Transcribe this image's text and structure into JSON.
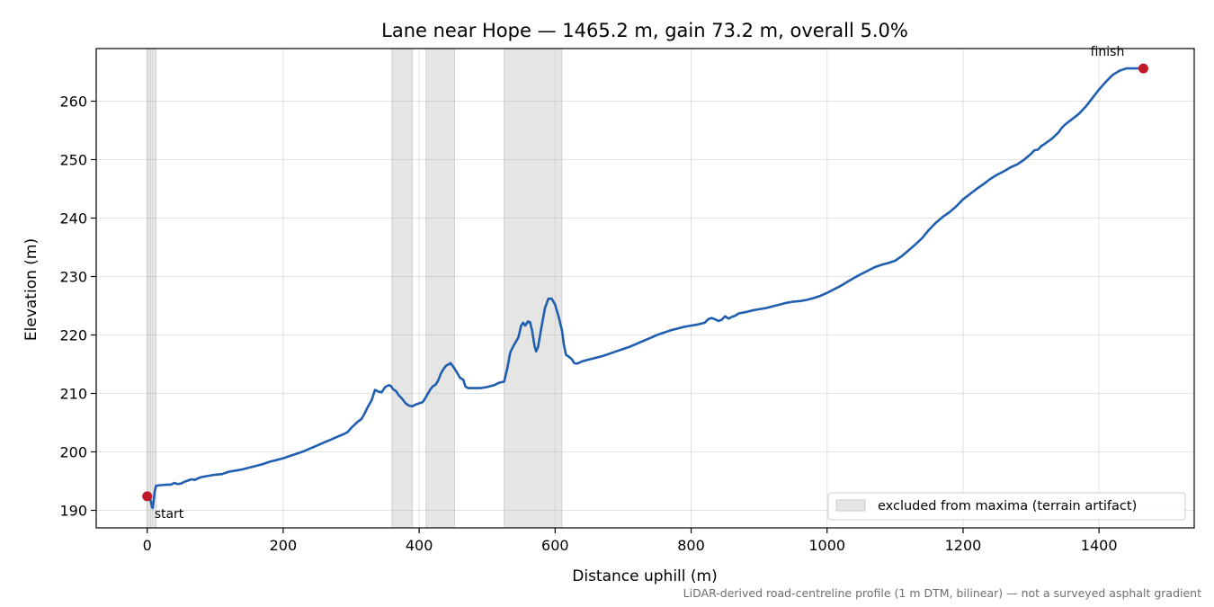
{
  "chart_data": {
    "type": "line",
    "title": "Lane near Hope — 1465.2 m, gain 73.2 m, overall 5.0%",
    "xlabel": "Distance uphill (m)",
    "ylabel": "Elevation (m)",
    "xlim": [
      -75,
      1540
    ],
    "ylim": [
      187,
      269
    ],
    "xticks": [
      0,
      200,
      400,
      600,
      800,
      1000,
      1200,
      1400
    ],
    "yticks": [
      190,
      200,
      210,
      220,
      230,
      240,
      250,
      260
    ],
    "grid": true,
    "legend": {
      "placement": "lower-right",
      "label": "excluded from maxima (terrain artifact)"
    },
    "footnote": "LiDAR-derived road-centreline profile (1 m DTM, bilinear) — not a surveyed asphalt gradient",
    "colors": {
      "line": "#1f5eb0",
      "marker": "#c0182a",
      "band": "#e5e5e4"
    },
    "excluded_ranges": [
      [
        0,
        5
      ],
      [
        7,
        13
      ],
      [
        360,
        390
      ],
      [
        410,
        452
      ],
      [
        525,
        610
      ]
    ],
    "annotations": [
      {
        "text": "start",
        "x": 0,
        "y": 192.4
      },
      {
        "text": "finish",
        "x": 1465.2,
        "y": 265.6
      }
    ],
    "series": [
      {
        "points": [
          [
            0,
            192.4
          ],
          [
            3,
            192.2
          ],
          [
            5,
            191.6
          ],
          [
            7,
            190.6
          ],
          [
            8,
            190.4
          ],
          [
            9,
            191.2
          ],
          [
            11,
            193.2
          ],
          [
            13,
            194.2
          ],
          [
            20,
            194.3
          ],
          [
            30,
            194.4
          ],
          [
            35,
            194.4
          ],
          [
            40,
            194.7
          ],
          [
            45,
            194.5
          ],
          [
            50,
            194.6
          ],
          [
            55,
            194.9
          ],
          [
            60,
            195.1
          ],
          [
            65,
            195.3
          ],
          [
            70,
            195.2
          ],
          [
            75,
            195.5
          ],
          [
            80,
            195.7
          ],
          [
            90,
            195.9
          ],
          [
            100,
            196.1
          ],
          [
            110,
            196.2
          ],
          [
            120,
            196.6
          ],
          [
            130,
            196.8
          ],
          [
            140,
            197.0
          ],
          [
            150,
            197.3
          ],
          [
            160,
            197.6
          ],
          [
            170,
            197.9
          ],
          [
            180,
            198.3
          ],
          [
            190,
            198.6
          ],
          [
            200,
            198.9
          ],
          [
            210,
            199.3
          ],
          [
            220,
            199.7
          ],
          [
            230,
            200.1
          ],
          [
            240,
            200.6
          ],
          [
            250,
            201.1
          ],
          [
            260,
            201.6
          ],
          [
            270,
            202.1
          ],
          [
            280,
            202.6
          ],
          [
            290,
            203.1
          ],
          [
            295,
            203.4
          ],
          [
            300,
            204.1
          ],
          [
            310,
            205.2
          ],
          [
            315,
            205.6
          ],
          [
            320,
            206.6
          ],
          [
            325,
            207.8
          ],
          [
            330,
            208.8
          ],
          [
            335,
            210.6
          ],
          [
            340,
            210.3
          ],
          [
            345,
            210.2
          ],
          [
            350,
            211.1
          ],
          [
            355,
            211.4
          ],
          [
            358,
            211.3
          ],
          [
            362,
            210.7
          ],
          [
            366,
            210.4
          ],
          [
            370,
            209.7
          ],
          [
            375,
            209.1
          ],
          [
            380,
            208.3
          ],
          [
            385,
            207.9
          ],
          [
            390,
            207.8
          ],
          [
            395,
            208.1
          ],
          [
            400,
            208.3
          ],
          [
            405,
            208.5
          ],
          [
            408,
            209.0
          ],
          [
            412,
            209.8
          ],
          [
            416,
            210.6
          ],
          [
            420,
            211.2
          ],
          [
            424,
            211.5
          ],
          [
            428,
            212.2
          ],
          [
            432,
            213.4
          ],
          [
            436,
            214.2
          ],
          [
            440,
            214.8
          ],
          [
            444,
            215.0
          ],
          [
            446,
            215.2
          ],
          [
            450,
            214.6
          ],
          [
            455,
            213.7
          ],
          [
            460,
            212.7
          ],
          [
            465,
            212.3
          ],
          [
            468,
            211.2
          ],
          [
            472,
            210.9
          ],
          [
            480,
            210.9
          ],
          [
            490,
            210.9
          ],
          [
            500,
            211.1
          ],
          [
            510,
            211.4
          ],
          [
            515,
            211.7
          ],
          [
            520,
            211.9
          ],
          [
            525,
            212.0
          ],
          [
            530,
            214.5
          ],
          [
            534,
            217.0
          ],
          [
            538,
            218.0
          ],
          [
            542,
            218.8
          ],
          [
            546,
            219.6
          ],
          [
            550,
            221.6
          ],
          [
            553,
            222.1
          ],
          [
            556,
            221.6
          ],
          [
            560,
            222.3
          ],
          [
            563,
            222.2
          ],
          [
            566,
            220.8
          ],
          [
            570,
            218.0
          ],
          [
            572,
            217.2
          ],
          [
            575,
            218.0
          ],
          [
            580,
            221.4
          ],
          [
            585,
            224.6
          ],
          [
            590,
            226.2
          ],
          [
            595,
            226.2
          ],
          [
            600,
            225.2
          ],
          [
            605,
            223.2
          ],
          [
            610,
            220.8
          ],
          [
            613,
            218.2
          ],
          [
            616,
            216.6
          ],
          [
            620,
            216.3
          ],
          [
            625,
            215.8
          ],
          [
            628,
            215.2
          ],
          [
            632,
            215.1
          ],
          [
            640,
            215.5
          ],
          [
            650,
            215.8
          ],
          [
            660,
            216.1
          ],
          [
            670,
            216.4
          ],
          [
            680,
            216.8
          ],
          [
            690,
            217.2
          ],
          [
            700,
            217.6
          ],
          [
            710,
            218.0
          ],
          [
            720,
            218.5
          ],
          [
            730,
            219.0
          ],
          [
            740,
            219.5
          ],
          [
            750,
            220.0
          ],
          [
            760,
            220.4
          ],
          [
            770,
            220.8
          ],
          [
            780,
            221.1
          ],
          [
            790,
            221.4
          ],
          [
            800,
            221.6
          ],
          [
            810,
            221.8
          ],
          [
            820,
            222.1
          ],
          [
            825,
            222.7
          ],
          [
            830,
            222.9
          ],
          [
            835,
            222.7
          ],
          [
            840,
            222.4
          ],
          [
            845,
            222.6
          ],
          [
            850,
            223.2
          ],
          [
            855,
            222.8
          ],
          [
            860,
            223.1
          ],
          [
            865,
            223.3
          ],
          [
            870,
            223.7
          ],
          [
            880,
            223.9
          ],
          [
            890,
            224.2
          ],
          [
            900,
            224.4
          ],
          [
            910,
            224.6
          ],
          [
            920,
            224.9
          ],
          [
            930,
            225.2
          ],
          [
            940,
            225.5
          ],
          [
            950,
            225.7
          ],
          [
            960,
            225.8
          ],
          [
            970,
            226.0
          ],
          [
            980,
            226.3
          ],
          [
            990,
            226.7
          ],
          [
            1000,
            227.2
          ],
          [
            1010,
            227.8
          ],
          [
            1020,
            228.4
          ],
          [
            1030,
            229.1
          ],
          [
            1040,
            229.8
          ],
          [
            1050,
            230.4
          ],
          [
            1060,
            231.0
          ],
          [
            1070,
            231.6
          ],
          [
            1080,
            232.0
          ],
          [
            1090,
            232.3
          ],
          [
            1100,
            232.7
          ],
          [
            1110,
            233.5
          ],
          [
            1120,
            234.5
          ],
          [
            1130,
            235.5
          ],
          [
            1140,
            236.6
          ],
          [
            1150,
            238.0
          ],
          [
            1160,
            239.2
          ],
          [
            1170,
            240.2
          ],
          [
            1180,
            241.0
          ],
          [
            1190,
            242.0
          ],
          [
            1200,
            243.2
          ],
          [
            1210,
            244.1
          ],
          [
            1220,
            245.0
          ],
          [
            1230,
            245.8
          ],
          [
            1240,
            246.7
          ],
          [
            1250,
            247.4
          ],
          [
            1260,
            248.0
          ],
          [
            1270,
            248.7
          ],
          [
            1280,
            249.2
          ],
          [
            1290,
            250.0
          ],
          [
            1300,
            251.0
          ],
          [
            1305,
            251.6
          ],
          [
            1310,
            251.7
          ],
          [
            1315,
            252.3
          ],
          [
            1320,
            252.7
          ],
          [
            1330,
            253.5
          ],
          [
            1340,
            254.6
          ],
          [
            1345,
            255.4
          ],
          [
            1350,
            256.0
          ],
          [
            1360,
            256.9
          ],
          [
            1370,
            257.8
          ],
          [
            1380,
            259.0
          ],
          [
            1390,
            260.5
          ],
          [
            1400,
            262.0
          ],
          [
            1410,
            263.3
          ],
          [
            1420,
            264.5
          ],
          [
            1430,
            265.2
          ],
          [
            1440,
            265.6
          ],
          [
            1450,
            265.6
          ],
          [
            1465.2,
            265.6
          ]
        ]
      }
    ]
  }
}
